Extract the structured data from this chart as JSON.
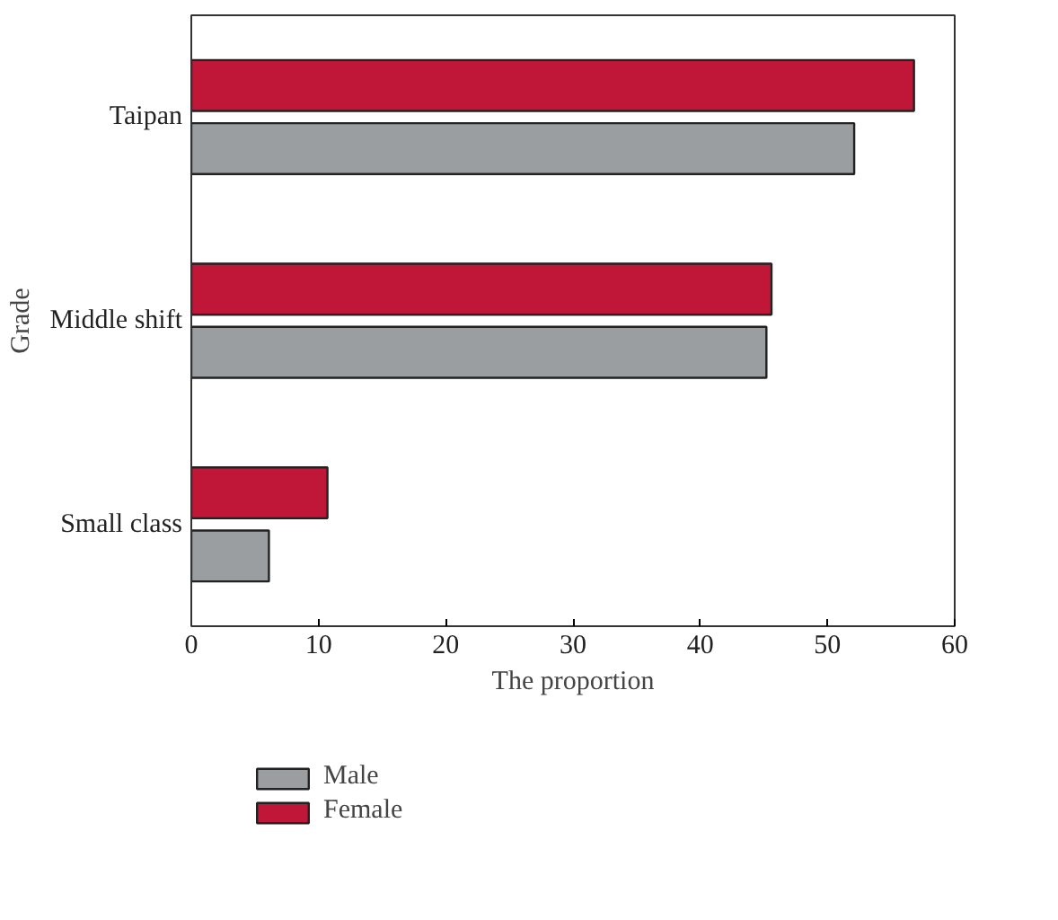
{
  "chart_data": {
    "type": "bar",
    "orientation": "horizontal",
    "xlabel": "The proportion",
    "ylabel": "Grade",
    "categories": [
      "Taipan",
      "Middle shift",
      "Small class"
    ],
    "series": [
      {
        "name": "Male",
        "color": "#9a9ea1",
        "values": [
          52.1,
          45.2,
          6.1
        ]
      },
      {
        "name": "Female",
        "color": "#c01638",
        "values": [
          56.8,
          45.6,
          10.7
        ]
      }
    ],
    "xlim": [
      0,
      60
    ],
    "xticks": [
      0,
      10,
      20,
      30,
      40,
      50,
      60
    ],
    "grid": false,
    "legend": "bottom"
  }
}
